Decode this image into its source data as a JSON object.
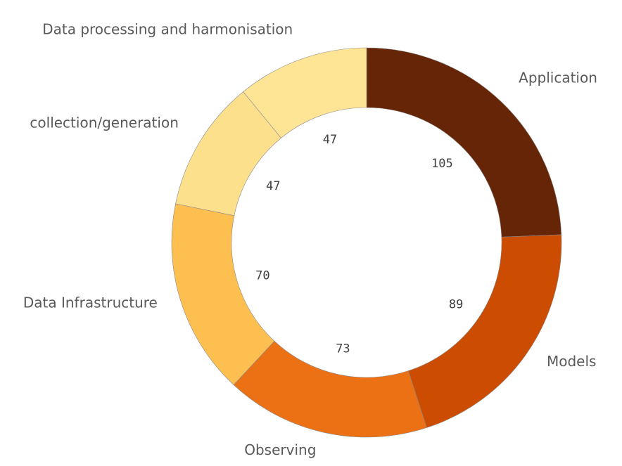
{
  "chart_data": {
    "type": "donut",
    "categories": [
      "Application",
      "Models",
      "Observing",
      "Data Infrastructure",
      "collection/generation",
      "Data processing and harmonisation"
    ],
    "values": [
      105,
      89,
      73,
      70,
      47,
      47
    ],
    "colors": [
      "#662506",
      "#cc4c02",
      "#ec7014",
      "#fdbf50",
      "#fde08c",
      "#fee596"
    ]
  }
}
